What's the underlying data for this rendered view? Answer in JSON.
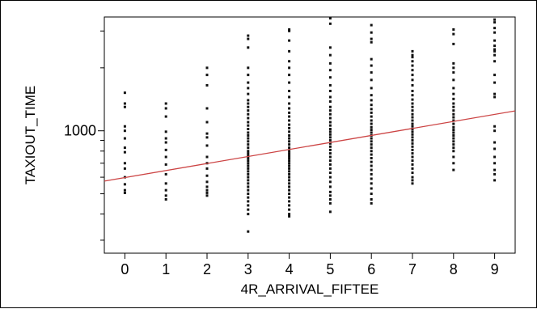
{
  "chart_data": {
    "type": "scatter",
    "title": "",
    "xlabel": "4R_ARRIVAL_FIFTEE",
    "ylabel": "TAXIOUT_TIME",
    "x_ticks": [
      "0",
      "1",
      "2",
      "3",
      "4",
      "5",
      "6",
      "7",
      "8",
      "9"
    ],
    "y_tick_labels": [
      "1000"
    ],
    "y_scale": "log",
    "xlim": [
      -0.5,
      9.5
    ],
    "ylim": [
      260,
      3500
    ],
    "grid": false,
    "colors": {
      "points": "#111111",
      "fit_line": "#cc4444"
    },
    "fit_line": {
      "x": [
        -0.5,
        9.5
      ],
      "y": [
        575,
        1245
      ]
    },
    "columns": [
      {
        "x": 0,
        "y": [
          1520,
          1350,
          1300,
          1050,
          1000,
          920,
          830,
          790,
          700,
          660,
          600,
          555,
          520,
          505
        ]
      },
      {
        "x": 1,
        "y": [
          1350,
          1280,
          1170,
          990,
          920,
          880,
          810,
          750,
          690,
          620,
          560,
          520,
          490,
          470
        ]
      },
      {
        "x": 2,
        "y": [
          2000,
          1850,
          1650,
          1280,
          1100,
          970,
          930,
          850,
          750,
          700,
          660,
          610,
          570,
          540,
          520,
          505,
          490
        ]
      },
      {
        "x": 3,
        "y": [
          2850,
          2750,
          2500,
          2000,
          1850,
          1700,
          1600,
          1500,
          1400,
          1350,
          1300,
          1250,
          1200,
          1150,
          1100,
          1060,
          1020,
          980,
          950,
          920,
          890,
          860,
          830,
          800,
          780,
          760,
          740,
          720,
          700,
          680,
          660,
          640,
          620,
          600,
          580,
          560,
          540,
          520,
          500,
          480,
          460,
          440,
          420,
          400,
          330
        ]
      },
      {
        "x": 4,
        "y": [
          3050,
          3000,
          2700,
          2400,
          2150,
          2000,
          1850,
          1700,
          1550,
          1450,
          1350,
          1280,
          1220,
          1170,
          1120,
          1070,
          1030,
          990,
          950,
          920,
          890,
          860,
          830,
          800,
          780,
          760,
          740,
          720,
          700,
          680,
          660,
          640,
          620,
          600,
          580,
          560,
          540,
          520,
          500,
          480,
          460,
          440,
          420,
          400,
          390
        ]
      },
      {
        "x": 5,
        "y": [
          3450,
          3250,
          2500,
          2300,
          2100,
          1950,
          1800,
          1650,
          1550,
          1450,
          1380,
          1300,
          1250,
          1200,
          1150,
          1100,
          1060,
          1020,
          990,
          960,
          930,
          900,
          870,
          840,
          810,
          780,
          750,
          720,
          690,
          660,
          630,
          600,
          570,
          540,
          510,
          490,
          470,
          450,
          410
        ]
      },
      {
        "x": 6,
        "y": [
          3200,
          2950,
          2750,
          2650,
          2200,
          2050,
          1900,
          1750,
          1600,
          1480,
          1400,
          1330,
          1270,
          1220,
          1170,
          1120,
          1080,
          1040,
          1010,
          980,
          950,
          920,
          890,
          860,
          830,
          800,
          770,
          740,
          710,
          680,
          650,
          620,
          590,
          560,
          530,
          500,
          470,
          450
        ]
      },
      {
        "x": 7,
        "y": [
          2400,
          2300,
          2250,
          2150,
          2050,
          1950,
          1850,
          1750,
          1650,
          1550,
          1480,
          1410,
          1350,
          1300,
          1250,
          1200,
          1160,
          1120,
          1080,
          1050,
          1020,
          990,
          960,
          930,
          900,
          870,
          840,
          810,
          780,
          750,
          720,
          690,
          660,
          630,
          600,
          580,
          560
        ]
      },
      {
        "x": 8,
        "y": [
          3050,
          2900,
          2600,
          2100,
          2000,
          1900,
          1750,
          1600,
          1500,
          1420,
          1350,
          1300,
          1250,
          1200,
          1160,
          1120,
          1080,
          1040,
          1010,
          980,
          950,
          920,
          890,
          860,
          830,
          800,
          750,
          700,
          650
        ]
      },
      {
        "x": 9,
        "y": [
          3400,
          3300,
          3100,
          2950,
          2700,
          2550,
          2450,
          2400,
          2300,
          2150,
          1850,
          1700,
          1500,
          1450,
          1050,
          1000,
          880,
          820,
          750,
          700,
          650,
          620,
          580
        ]
      }
    ]
  }
}
